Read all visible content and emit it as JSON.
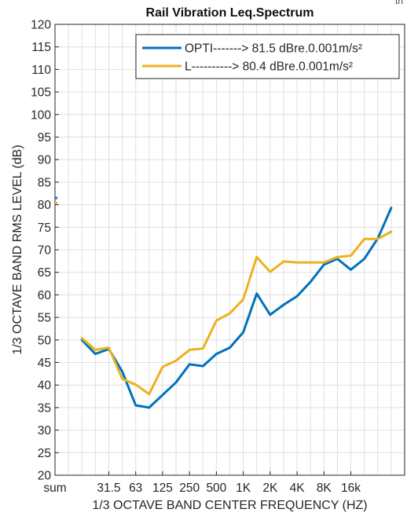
{
  "corner_text": "th",
  "chart_data": {
    "type": "line",
    "title": "Rail Vibration Leq.Spectrum",
    "xlabel": "1/3 OCTAVE BAND CENTER FREQUENCY (HZ)",
    "ylabel": "1/3 OCTAVE BAND RMS LEVEL (dB)",
    "ylim": [
      20,
      120
    ],
    "y_ticks": [
      20,
      25,
      30,
      35,
      40,
      45,
      50,
      55,
      60,
      65,
      70,
      75,
      80,
      85,
      90,
      95,
      100,
      105,
      110,
      115,
      120
    ],
    "xlim": [
      0,
      26
    ],
    "x_tick_labels": [
      {
        "pos": 0,
        "label": "sum"
      },
      {
        "pos": 4,
        "label": "31.5"
      },
      {
        "pos": 6,
        "label": "63"
      },
      {
        "pos": 8,
        "label": "125"
      },
      {
        "pos": 10,
        "label": "250"
      },
      {
        "pos": 12,
        "label": "500"
      },
      {
        "pos": 14,
        "label": "1K"
      },
      {
        "pos": 16,
        "label": "2K"
      },
      {
        "pos": 18,
        "label": "4K"
      },
      {
        "pos": 20,
        "label": "8K"
      },
      {
        "pos": 22,
        "label": "16k"
      }
    ],
    "minor_x_grid": true,
    "grid": true,
    "legend_position": "top-right",
    "sum_points": [
      {
        "series": 0,
        "x": 0,
        "y": 81.5
      },
      {
        "series": 1,
        "x": 0,
        "y": 80.4
      }
    ],
    "series": [
      {
        "name": "OPTI-------> 81.5 dBre.0.001m/s²",
        "color": "#0072BD",
        "x": [
          2,
          3,
          4,
          5,
          6,
          7,
          8,
          9,
          10,
          11,
          12,
          13,
          14,
          15,
          16,
          17,
          18,
          19,
          20,
          21,
          22,
          23,
          24,
          25
        ],
        "values": [
          50.0,
          46.9,
          48.0,
          43.0,
          35.5,
          35.0,
          37.8,
          40.6,
          44.6,
          44.2,
          46.9,
          48.3,
          51.7,
          60.3,
          55.6,
          57.8,
          59.7,
          62.9,
          66.7,
          68.0,
          65.6,
          68.0,
          72.5,
          79.3
        ]
      },
      {
        "name": "L----------> 80.4 dBre.0.001m/s²",
        "color": "#EDB120",
        "x": [
          2,
          3,
          4,
          5,
          6,
          7,
          8,
          9,
          10,
          11,
          12,
          13,
          14,
          15,
          16,
          17,
          18,
          19,
          20,
          21,
          22,
          23,
          24,
          25
        ],
        "values": [
          50.4,
          47.8,
          48.3,
          41.4,
          40.1,
          38.0,
          44.0,
          45.4,
          47.8,
          48.1,
          54.3,
          55.9,
          59.0,
          68.4,
          65.1,
          67.4,
          67.2,
          67.2,
          67.2,
          68.4,
          68.7,
          72.4,
          72.4,
          74.0
        ]
      }
    ]
  }
}
